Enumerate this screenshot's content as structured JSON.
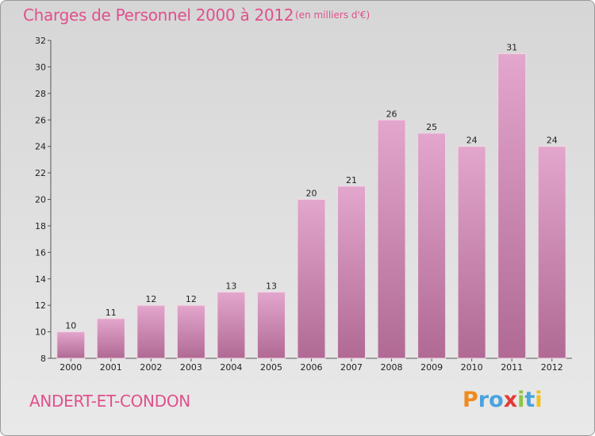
{
  "header": {
    "title": "Charges de Personnel 2000 à 2012",
    "unit": "(en milliers d'€)"
  },
  "footer": {
    "commune": "ANDERT-ET-CONDON",
    "logo_letters": [
      "P",
      "r",
      "o",
      "x",
      "i",
      "t",
      "i"
    ],
    "logo_colors": [
      "#f08a1c",
      "#4aa3df",
      "#4aa3df",
      "#e53935",
      "#8dc63f",
      "#4aa3df",
      "#f2c21b"
    ]
  },
  "colors": {
    "accent": "#e0508c",
    "bar_top": "#e3a6cc",
    "bar_bottom": "#b06a94"
  },
  "chart_data": {
    "type": "bar",
    "categories": [
      "2000",
      "2001",
      "2002",
      "2003",
      "2004",
      "2005",
      "2006",
      "2007",
      "2008",
      "2009",
      "2010",
      "2011",
      "2012"
    ],
    "values": [
      10,
      11,
      12,
      12,
      13,
      13,
      20,
      21,
      26,
      25,
      24,
      31,
      24
    ],
    "ylim": [
      8,
      32
    ],
    "yticks": [
      8,
      10,
      12,
      14,
      16,
      18,
      20,
      22,
      24,
      26,
      28,
      30,
      32
    ],
    "grid": false,
    "data_labels": true
  }
}
